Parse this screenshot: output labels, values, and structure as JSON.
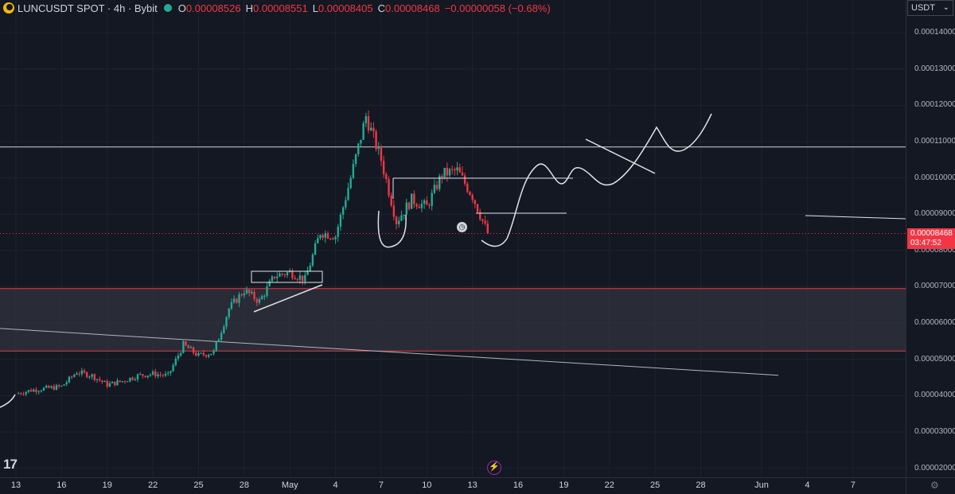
{
  "legend": {
    "symbol": "LUNCUSDT SPOT · 4h · Bybit",
    "open_key": "O",
    "open": "0.00008526",
    "high_key": "H",
    "high": "0.00008551",
    "low_key": "L",
    "low": "0.00008405",
    "close_key": "C",
    "close": "0.00008468",
    "change": "−0.00000058 (−0.68%)"
  },
  "currency_button": "USDT",
  "price_axis": {
    "labels": [
      "0.00014000",
      "0.00013000",
      "0.00012000",
      "0.00011000",
      "0.00010000",
      "0.00009000",
      "0.00008000",
      "0.00007000",
      "0.00006000",
      "0.00005000",
      "0.00004000",
      "0.00003000",
      "0.00002000"
    ],
    "current_price": "0.00008468",
    "countdown": "03:47:52"
  },
  "time_axis": {
    "labels": [
      "13",
      "16",
      "19",
      "22",
      "25",
      "28",
      "May",
      "4",
      "7",
      "10",
      "13",
      "16",
      "19",
      "22",
      "25",
      "28",
      "Jun",
      "4",
      "7"
    ]
  },
  "colors": {
    "up": "#22ab94",
    "down": "#f23645",
    "background": "#141822",
    "grid": "#1e2230",
    "drawing": "#e0e3eb"
  },
  "icons": {
    "logo": "tradingview-logo-icon",
    "alert": "alarm-clock-icon",
    "replay": "lightning-icon",
    "settings": "gear-icon"
  },
  "chart_data": {
    "type": "candlestick",
    "symbol": "LUNCUSDT",
    "interval": "4h",
    "exchange": "Bybit",
    "y_range": [
      1.75e-05,
      0.000149
    ],
    "x_range": [
      "Apr 13",
      "Jun 9"
    ],
    "last_price": 8.468e-05,
    "horizontal_lines": [
      0.0001085,
      6.95e-05,
      5.23e-05
    ],
    "zone": [
      5.23e-05,
      6.95e-05
    ],
    "trend_line": {
      "from": 5.85e-05,
      "to": 4.56e-05
    },
    "path_points": [
      [
        "Apr 13",
        4.05e-05
      ],
      [
        "Apr 14",
        4.15e-05
      ],
      [
        "Apr 15",
        4.2e-05
      ],
      [
        "Apr 16",
        4.25e-05
      ],
      [
        "Apr 17",
        4.65e-05
      ],
      [
        "Apr 18",
        4.55e-05
      ],
      [
        "Apr 19",
        4.3e-05
      ],
      [
        "Apr 20",
        4.4e-05
      ],
      [
        "Apr 21",
        4.55e-05
      ],
      [
        "Apr 22",
        4.6e-05
      ],
      [
        "Apr 23",
        4.55e-05
      ],
      [
        "Apr 24",
        5.4e-05
      ],
      [
        "Apr 25",
        5.1e-05
      ],
      [
        "Apr 26",
        5.2e-05
      ],
      [
        "Apr 27",
        6.4e-05
      ],
      [
        "Apr 28",
        6.9e-05
      ],
      [
        "Apr 29",
        6.6e-05
      ],
      [
        "Apr 30",
        7.3e-05
      ],
      [
        "May 1",
        7.4e-05
      ],
      [
        "May 2",
        7.2e-05
      ],
      [
        "May 3",
        8.5e-05
      ],
      [
        "May 4",
        8.4e-05
      ],
      [
        "May 5",
        0.0001
      ],
      [
        "May 6",
        0.000117
      ],
      [
        "May 7",
        0.000105
      ],
      [
        "May 8",
        8.8e-05
      ],
      [
        "May 9",
        9.4e-05
      ],
      [
        "May 10",
        9.2e-05
      ],
      [
        "May 11",
        0.000101
      ],
      [
        "May 12",
        0.000102
      ],
      [
        "May 13",
        9.5e-05
      ],
      [
        "May 14",
        8.47e-05
      ]
    ]
  }
}
